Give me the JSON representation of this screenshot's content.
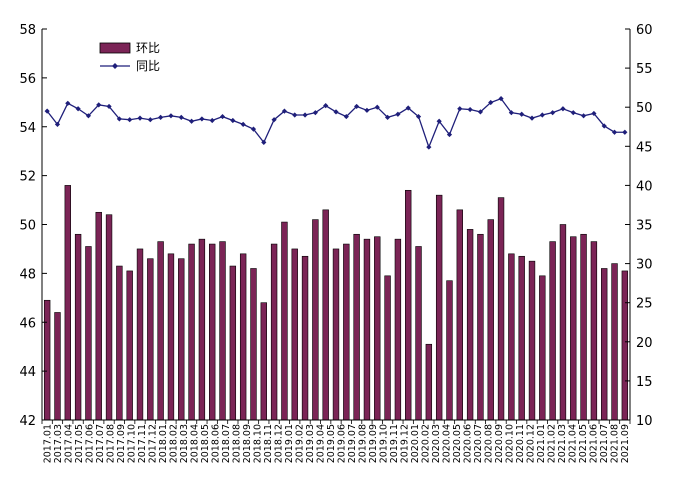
{
  "chart_data": {
    "type": "bar+line",
    "categories": [
      "2017.01",
      "2017.02",
      "2017.03",
      "2017.04",
      "2017.05",
      "2017.06",
      "2017.07",
      "2017.08",
      "2017.09",
      "2017.10",
      "2017.11",
      "2017.12",
      "2018.01",
      "2018.02",
      "2018.03",
      "2018.04",
      "2018.05",
      "2018.06",
      "2018.07",
      "2018.08",
      "2018.09",
      "2018.10",
      "2018.11",
      "2018.12",
      "2019.01",
      "2019.02",
      "2019.03",
      "2019.04",
      "2019.05",
      "2019.06",
      "2019.07",
      "2019.08",
      "2019.09",
      "2019.10",
      "2019.11",
      "2019.12",
      "2020.01",
      "2020.02",
      "2020.03",
      "2020.04",
      "2020.05",
      "2020.06",
      "2020.07",
      "2020.08",
      "2020.09",
      "2020.10",
      "2020.11",
      "2020.12",
      "2021.01",
      "2021.02",
      "2021.03",
      "2021.04",
      "2021.05",
      "2021.06",
      "2021.07",
      "2021.08",
      "2021.09"
    ],
    "x_tick_labels": [
      "2017.01",
      "2017.03",
      "2017.04",
      "2017.05",
      "2017.06",
      "2017.07",
      "2017.08",
      "2017.09",
      "2017.10",
      "2017.11",
      "2017.12",
      "2018.01",
      "2018.02",
      "2018.03",
      "2018.04",
      "2018.05",
      "2018.06",
      "2018.07",
      "2018.08",
      "2018.09",
      "2018.10",
      "2018.11",
      "2018.12",
      "2019.01",
      "2019.02",
      "2019.03",
      "2019.04",
      "2019.05",
      "2019.06",
      "2019.07",
      "2019.08",
      "2019.09",
      "2019.10",
      "2019.11",
      "2019.12",
      "2020.01",
      "2020.02",
      "2020.03",
      "2020.04",
      "2020.05",
      "2020.06",
      "2020.07",
      "2020.08",
      "2020.09",
      "2020.10",
      "2020.11",
      "2020.12",
      "2021.01",
      "2021.02",
      "2021.03",
      "2021.04",
      "2021.05",
      "2021.06",
      "2021.07",
      "2021.08",
      "2021.09"
    ],
    "series": [
      {
        "name": "环比",
        "type": "bar",
        "axis": "left",
        "color": "#7B2456",
        "values": [
          46.9,
          46.4,
          51.6,
          49.6,
          49.1,
          50.5,
          50.4,
          48.3,
          48.1,
          49.0,
          48.6,
          49.3,
          48.8,
          48.6,
          49.2,
          49.4,
          49.2,
          49.3,
          48.3,
          48.8,
          48.2,
          46.8,
          49.2,
          50.1,
          49.0,
          48.7,
          50.2,
          50.6,
          49.0,
          49.2,
          49.6,
          49.4,
          49.5,
          47.9,
          49.4,
          51.4,
          49.1,
          45.1,
          51.2,
          47.7,
          50.6,
          49.8,
          49.6,
          50.2,
          51.1,
          48.8,
          48.7,
          48.5,
          47.9,
          49.3,
          50.0,
          49.5,
          49.6,
          49.3,
          48.2,
          48.4,
          48.1
        ]
      },
      {
        "name": "同比",
        "type": "line",
        "axis": "right",
        "color": "#1F1F7A",
        "values": [
          49.5,
          47.8,
          50.5,
          49.8,
          48.9,
          50.3,
          50.1,
          48.5,
          48.4,
          48.6,
          48.4,
          48.7,
          48.9,
          48.7,
          48.2,
          48.5,
          48.3,
          48.8,
          48.3,
          47.8,
          47.2,
          45.5,
          48.4,
          49.5,
          49.0,
          49.0,
          49.3,
          50.2,
          49.4,
          48.8,
          50.1,
          49.6,
          50.0,
          48.7,
          49.1,
          49.9,
          48.8,
          44.9,
          48.2,
          46.5,
          49.8,
          49.7,
          49.4,
          50.6,
          51.1,
          49.3,
          49.1,
          48.6,
          49.0,
          49.3,
          49.8,
          49.3,
          48.9,
          49.2,
          47.6,
          46.8,
          46.8
        ]
      }
    ],
    "ylim_left": [
      42,
      58
    ],
    "yticks_left": [
      "42",
      "44",
      "46",
      "48",
      "50",
      "52",
      "54",
      "56",
      "58"
    ],
    "ylim_right": [
      10,
      60
    ],
    "yticks_right": [
      "10",
      "15",
      "20",
      "25",
      "30",
      "35",
      "40",
      "45",
      "50",
      "55",
      "60"
    ],
    "legend": {
      "placement": "top-left",
      "entries": [
        "环比",
        "同比"
      ]
    },
    "grid": false,
    "title": "",
    "xlabel": "",
    "ylabel": ""
  }
}
